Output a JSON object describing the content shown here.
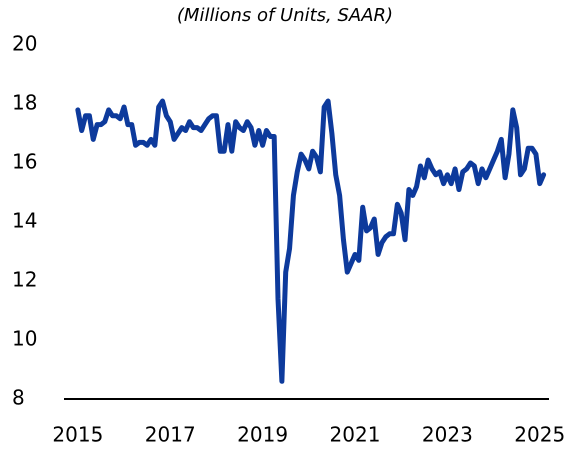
{
  "chart_data": {
    "type": "line",
    "subtitle": "(Millions of Units, SAAR)",
    "x": [
      2015,
      2015.083,
      2015.167,
      2015.25,
      2015.333,
      2015.417,
      2015.5,
      2015.583,
      2015.667,
      2015.75,
      2015.833,
      2015.917,
      2016,
      2016.083,
      2016.167,
      2016.25,
      2016.333,
      2016.417,
      2016.5,
      2016.583,
      2016.667,
      2016.75,
      2016.833,
      2016.917,
      2017,
      2017.083,
      2017.167,
      2017.25,
      2017.333,
      2017.417,
      2017.5,
      2017.583,
      2017.667,
      2017.75,
      2017.833,
      2017.917,
      2018,
      2018.083,
      2018.167,
      2018.25,
      2018.333,
      2018.417,
      2018.5,
      2018.583,
      2018.667,
      2018.75,
      2018.833,
      2018.917,
      2019,
      2019.083,
      2019.167,
      2019.25,
      2019.333,
      2019.417,
      2019.5,
      2019.583,
      2019.667,
      2019.75,
      2019.833,
      2019.917,
      2020,
      2020.083,
      2020.167,
      2020.25,
      2020.333,
      2020.417,
      2020.5,
      2020.583,
      2020.667,
      2020.75,
      2020.833,
      2020.917,
      2021,
      2021.083,
      2021.167,
      2021.25,
      2021.333,
      2021.417,
      2021.5,
      2021.583,
      2021.667,
      2021.75,
      2021.833,
      2021.917,
      2022,
      2022.083,
      2022.167,
      2022.25,
      2022.333,
      2022.417,
      2022.5,
      2022.583,
      2022.667,
      2022.75,
      2022.833,
      2022.917,
      2023,
      2023.083,
      2023.167,
      2023.25,
      2023.333,
      2023.417,
      2023.5,
      2023.583,
      2023.667,
      2023.75,
      2023.833,
      2023.917,
      2024,
      2024.083,
      2024.167,
      2024.25,
      2024.333,
      2024.417,
      2024.5,
      2024.583,
      2024.667,
      2024.75,
      2024.833,
      2024.917,
      2025,
      2025.083
    ],
    "series": [
      {
        "color": "#0d3a9c",
        "values": [
          17.8,
          17.1,
          17.6,
          17.6,
          16.8,
          17.3,
          17.3,
          17.4,
          17.8,
          17.6,
          17.6,
          17.5,
          17.9,
          17.3,
          17.3,
          16.6,
          16.7,
          16.7,
          16.6,
          16.8,
          16.6,
          17.9,
          18.1,
          17.6,
          17.4,
          16.8,
          17.0,
          17.2,
          17.1,
          17.4,
          17.2,
          17.2,
          17.1,
          17.3,
          17.5,
          17.6,
          17.6,
          16.4,
          16.4,
          17.3,
          16.4,
          17.4,
          17.2,
          17.1,
          17.4,
          17.2,
          16.6,
          17.1,
          16.6,
          17.1,
          16.9,
          16.9,
          11.4,
          8.6,
          12.3,
          13.1,
          14.9,
          15.7,
          16.3,
          16.1,
          15.8,
          16.4,
          16.2,
          15.7,
          17.9,
          18.1,
          17.0,
          15.6,
          14.9,
          13.4,
          12.3,
          12.6,
          12.9,
          12.7,
          14.5,
          13.7,
          13.8,
          14.1,
          12.9,
          13.3,
          13.5,
          13.6,
          13.6,
          14.6,
          14.3,
          13.4,
          15.1,
          14.9,
          15.2,
          15.9,
          15.5,
          16.1,
          15.8,
          15.6,
          15.7,
          15.3,
          15.6,
          15.3,
          15.8,
          15.1,
          15.7,
          15.8,
          16.0,
          15.9,
          15.3,
          15.8,
          15.5,
          15.8,
          16.1,
          16.4,
          16.8,
          15.5,
          16.3,
          17.8,
          17.2,
          15.6,
          15.8,
          16.5,
          16.5,
          16.3,
          15.3,
          15.6
        ]
      }
    ],
    "xlim": [
      2014.7,
      2025.2
    ],
    "xticks": [
      2015,
      2017,
      2019,
      2021,
      2023,
      2025
    ],
    "ylim": [
      8,
      20
    ],
    "yticks": [
      8,
      10,
      12,
      14,
      16,
      18,
      20
    ],
    "grid": false
  }
}
